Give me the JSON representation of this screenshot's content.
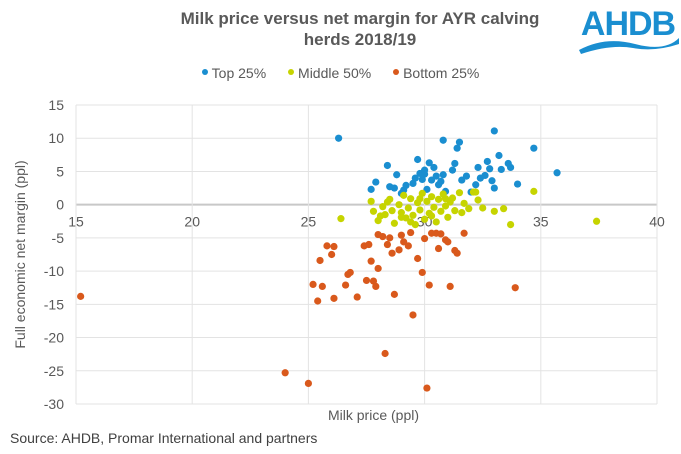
{
  "header": {
    "title_line1": "Milk price versus net margin for AYR calving",
    "title_line2": "herds 2018/19",
    "logo_text": "AHDB"
  },
  "footer": {
    "source": "Source: AHDB, Promar International  and partners"
  },
  "colors": {
    "top": "#1a8ed0",
    "middle": "#c6d400",
    "bottom": "#d9591c",
    "logo": "#1a8ed0"
  },
  "chart_data": {
    "type": "scatter",
    "title": "Milk price versus net margin for AYR calving herds 2018/19",
    "xlabel": "Milk price (ppl)",
    "ylabel": "Full economic net margin (ppl)",
    "xlim": [
      15,
      40
    ],
    "ylim": [
      -30,
      15
    ],
    "x_ticks": [
      "15",
      "20",
      "25",
      "30",
      "35",
      "40"
    ],
    "y_ticks": [
      "15",
      "10",
      "5",
      "0",
      "-5",
      "-10",
      "-15",
      "-20",
      "-25",
      "-30"
    ],
    "grid": true,
    "legend_position": "top",
    "series": [
      {
        "name": "Top 25%",
        "color_key": "top",
        "points": [
          [
            26.3,
            10.0
          ],
          [
            27.7,
            2.3
          ],
          [
            27.9,
            3.4
          ],
          [
            28.4,
            5.9
          ],
          [
            28.5,
            2.7
          ],
          [
            28.8,
            4.5
          ],
          [
            28.7,
            2.5
          ],
          [
            29.0,
            1.7
          ],
          [
            29.1,
            2.2
          ],
          [
            29.2,
            2.9
          ],
          [
            29.5,
            3.2
          ],
          [
            29.8,
            4.7
          ],
          [
            29.9,
            3.8
          ],
          [
            29.7,
            6.8
          ],
          [
            30.0,
            5.2
          ],
          [
            30.2,
            6.3
          ],
          [
            30.3,
            3.7
          ],
          [
            30.1,
            2.3
          ],
          [
            30.4,
            5.6
          ],
          [
            30.5,
            4.3
          ],
          [
            30.6,
            3.0
          ],
          [
            30.7,
            3.5
          ],
          [
            30.8,
            9.7
          ],
          [
            30.9,
            2.0
          ],
          [
            31.2,
            5.2
          ],
          [
            31.4,
            8.5
          ],
          [
            31.5,
            9.4
          ],
          [
            31.3,
            6.2
          ],
          [
            31.6,
            3.7
          ],
          [
            31.8,
            4.3
          ],
          [
            32.0,
            1.9
          ],
          [
            32.2,
            3.0
          ],
          [
            32.3,
            5.6
          ],
          [
            32.4,
            4.0
          ],
          [
            32.6,
            4.4
          ],
          [
            32.7,
            6.5
          ],
          [
            32.8,
            5.4
          ],
          [
            32.9,
            3.6
          ],
          [
            33.0,
            2.5
          ],
          [
            33.0,
            11.1
          ],
          [
            33.2,
            7.4
          ],
          [
            33.3,
            5.3
          ],
          [
            33.6,
            6.2
          ],
          [
            33.7,
            5.6
          ],
          [
            34.0,
            3.1
          ],
          [
            34.7,
            8.5
          ],
          [
            35.7,
            4.8
          ],
          [
            30.0,
            4.6
          ],
          [
            29.6,
            4.0
          ],
          [
            30.8,
            4.5
          ]
        ]
      },
      {
        "name": "Middle 50%",
        "color_key": "middle",
        "points": [
          [
            26.4,
            -2.1
          ],
          [
            27.7,
            0.5
          ],
          [
            27.8,
            -1.0
          ],
          [
            28.0,
            -2.4
          ],
          [
            28.2,
            -0.3
          ],
          [
            28.3,
            -1.5
          ],
          [
            28.5,
            0.8
          ],
          [
            28.6,
            -0.9
          ],
          [
            28.7,
            -2.8
          ],
          [
            28.9,
            0.0
          ],
          [
            29.0,
            -1.2
          ],
          [
            29.1,
            1.4
          ],
          [
            29.2,
            -2.0
          ],
          [
            29.3,
            -0.5
          ],
          [
            29.4,
            0.9
          ],
          [
            29.5,
            -1.6
          ],
          [
            29.6,
            -3.0
          ],
          [
            29.7,
            0.3
          ],
          [
            29.8,
            -0.8
          ],
          [
            29.9,
            1.7
          ],
          [
            30.0,
            -2.2
          ],
          [
            30.1,
            0.5
          ],
          [
            30.2,
            -1.3
          ],
          [
            30.3,
            1.2
          ],
          [
            30.4,
            -0.4
          ],
          [
            30.5,
            -2.6
          ],
          [
            30.6,
            0.8
          ],
          [
            30.7,
            -1.0
          ],
          [
            30.8,
            1.6
          ],
          [
            30.9,
            -0.2
          ],
          [
            31.0,
            -1.9
          ],
          [
            31.1,
            0.4
          ],
          [
            31.2,
            1.0
          ],
          [
            31.3,
            -0.9
          ],
          [
            31.5,
            1.8
          ],
          [
            31.7,
            0.2
          ],
          [
            31.9,
            -0.6
          ],
          [
            32.1,
            1.9
          ],
          [
            32.3,
            0.7
          ],
          [
            32.5,
            -0.5
          ],
          [
            33.0,
            -1.0
          ],
          [
            33.4,
            -0.6
          ],
          [
            33.7,
            -3.0
          ],
          [
            34.7,
            2.0
          ],
          [
            37.4,
            -2.5
          ],
          [
            28.4,
            0.4
          ],
          [
            29.0,
            -1.9
          ],
          [
            29.8,
            0.9
          ],
          [
            30.3,
            -1.7
          ],
          [
            31.6,
            -1.2
          ],
          [
            32.2,
            1.9
          ],
          [
            28.1,
            -1.7
          ],
          [
            30.9,
            0.9
          ],
          [
            29.4,
            -2.6
          ]
        ]
      },
      {
        "name": "Bottom 25%",
        "color_key": "bottom",
        "points": [
          [
            15.2,
            -13.8
          ],
          [
            24.0,
            -25.3
          ],
          [
            25.0,
            -26.9
          ],
          [
            25.2,
            -12.0
          ],
          [
            25.4,
            -14.5
          ],
          [
            25.5,
            -8.4
          ],
          [
            25.6,
            -12.3
          ],
          [
            25.8,
            -6.2
          ],
          [
            26.0,
            -7.5
          ],
          [
            26.1,
            -6.3
          ],
          [
            26.1,
            -14.1
          ],
          [
            26.6,
            -12.1
          ],
          [
            26.7,
            -10.5
          ],
          [
            26.8,
            -10.2
          ],
          [
            27.1,
            -13.9
          ],
          [
            27.4,
            -6.2
          ],
          [
            27.5,
            -11.4
          ],
          [
            27.6,
            -6.0
          ],
          [
            27.7,
            -8.5
          ],
          [
            27.8,
            -11.5
          ],
          [
            27.9,
            -12.3
          ],
          [
            28.0,
            -9.6
          ],
          [
            28.2,
            -4.8
          ],
          [
            28.3,
            -22.4
          ],
          [
            28.4,
            -6.0
          ],
          [
            28.5,
            -5.0
          ],
          [
            28.6,
            -7.3
          ],
          [
            28.7,
            -13.5
          ],
          [
            28.9,
            -6.8
          ],
          [
            29.1,
            -5.6
          ],
          [
            29.3,
            -6.2
          ],
          [
            29.4,
            -4.2
          ],
          [
            29.5,
            -16.6
          ],
          [
            29.7,
            -8.1
          ],
          [
            29.9,
            -10.2
          ],
          [
            30.0,
            -5.1
          ],
          [
            30.1,
            -27.6
          ],
          [
            30.2,
            -12.1
          ],
          [
            30.3,
            -4.3
          ],
          [
            30.5,
            -4.3
          ],
          [
            30.6,
            -6.6
          ],
          [
            30.9,
            -5.3
          ],
          [
            31.0,
            -5.6
          ],
          [
            31.1,
            -12.3
          ],
          [
            31.3,
            -6.9
          ],
          [
            31.4,
            -7.3
          ],
          [
            31.7,
            -4.3
          ],
          [
            33.9,
            -12.5
          ],
          [
            28.0,
            -4.5
          ],
          [
            29.0,
            -4.6
          ],
          [
            30.7,
            -4.4
          ]
        ]
      }
    ]
  }
}
